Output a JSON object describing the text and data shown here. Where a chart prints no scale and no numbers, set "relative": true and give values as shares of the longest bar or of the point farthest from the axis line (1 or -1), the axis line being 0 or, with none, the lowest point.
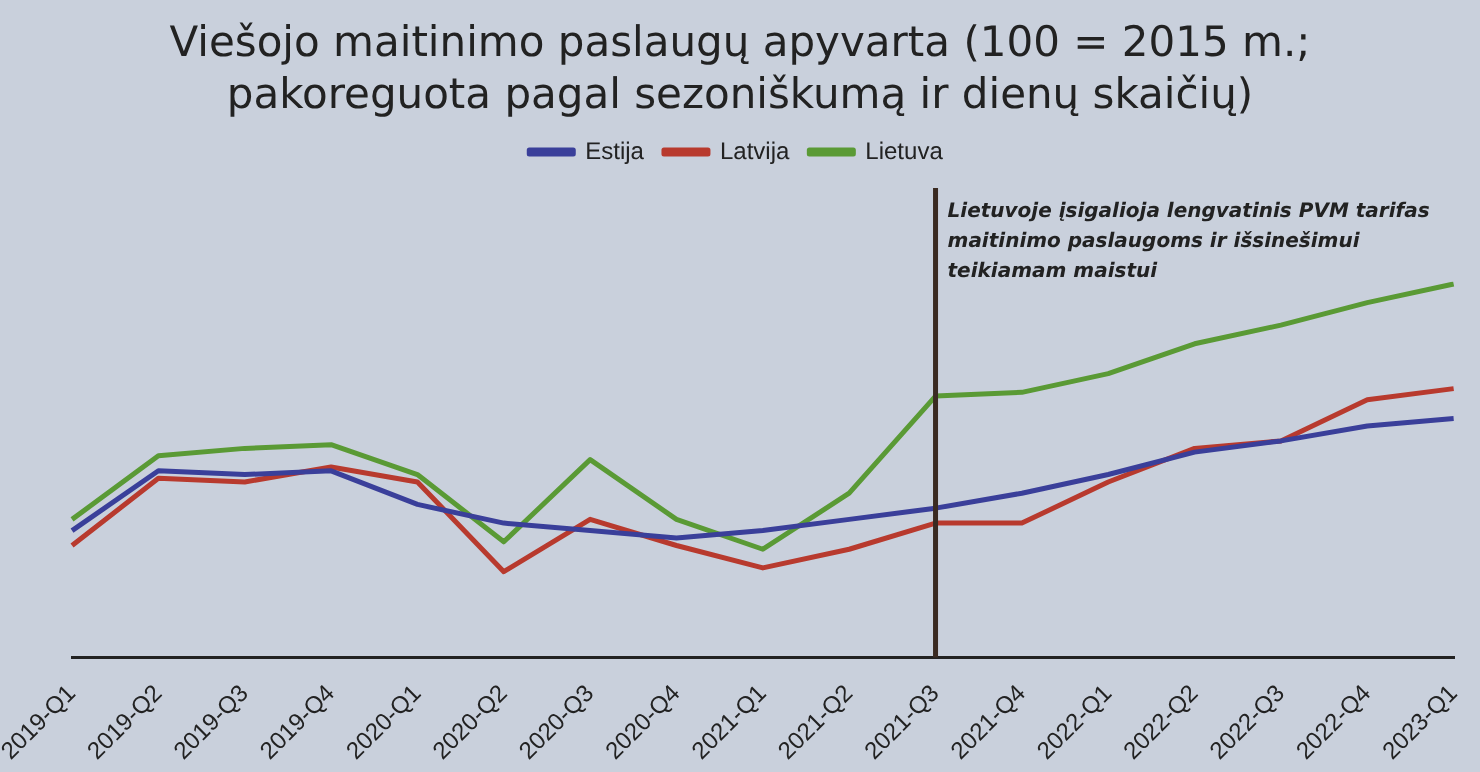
{
  "chart_data": {
    "type": "line",
    "title": "Viešojo maitinimo paslaugų apyvarta (100 = 2015 m.; pakoreguota pagal sezoniškumą ir dienų skaičių)",
    "categories": [
      "2019-Q1",
      "2019-Q2",
      "2019-Q3",
      "2019-Q4",
      "2020-Q1",
      "2020-Q2",
      "2020-Q3",
      "2020-Q4",
      "2021-Q1",
      "2021-Q2",
      "2021-Q3",
      "2021-Q4",
      "2022-Q1",
      "2022-Q2",
      "2022-Q3",
      "2022-Q4",
      "2023-Q1"
    ],
    "relative": true,
    "series": [
      {
        "name": "Estija",
        "color": "#3a3f9a",
        "values": [
          0.34,
          0.5,
          0.49,
          0.5,
          0.41,
          0.36,
          0.34,
          0.32,
          0.34,
          0.37,
          0.4,
          0.44,
          0.49,
          0.55,
          0.58,
          0.62,
          0.64
        ]
      },
      {
        "name": "Latvija",
        "color": "#b83a2e",
        "values": [
          0.3,
          0.48,
          0.47,
          0.51,
          0.47,
          0.23,
          0.37,
          0.3,
          0.24,
          0.29,
          0.36,
          0.36,
          0.47,
          0.56,
          0.58,
          0.69,
          0.72
        ]
      },
      {
        "name": "Lietuva",
        "color": "#5a9a35",
        "values": [
          0.37,
          0.54,
          0.56,
          0.57,
          0.49,
          0.31,
          0.53,
          0.37,
          0.29,
          0.44,
          0.7,
          0.71,
          0.76,
          0.84,
          0.89,
          0.95,
          1
        ]
      }
    ],
    "ref_lines": [
      {
        "axis": "x",
        "value": "2021-Q3",
        "label": "Lietuvoje įsigalioja lengvatinis PVM tarifas maitinimo paslaugoms ir išsinešimui teikiamam maistui",
        "color": "#3a2a22"
      }
    ],
    "legend": "top",
    "marker": "none",
    "line_style": "solid"
  }
}
